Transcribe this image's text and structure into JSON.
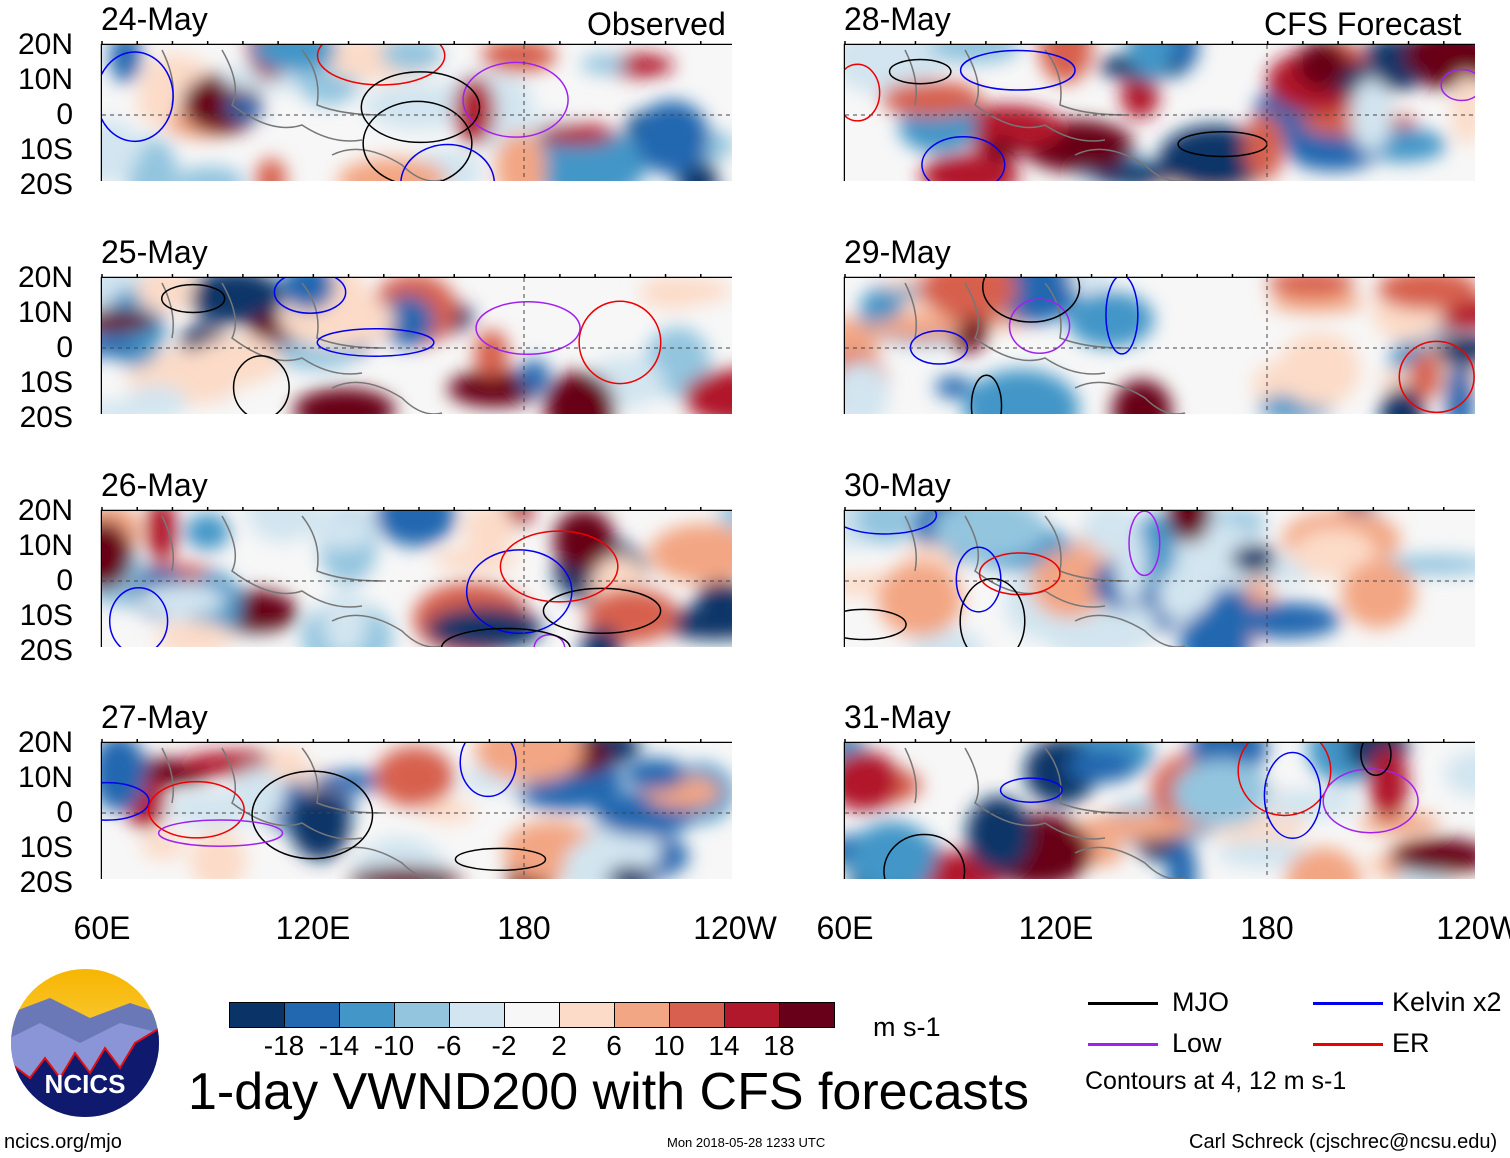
{
  "header": {
    "left_title": "Observed",
    "right_title": "CFS Forecast"
  },
  "panels": [
    {
      "date": "24-May",
      "column": "observed"
    },
    {
      "date": "25-May",
      "column": "observed"
    },
    {
      "date": "26-May",
      "column": "observed"
    },
    {
      "date": "27-May",
      "column": "observed"
    },
    {
      "date": "28-May",
      "column": "forecast"
    },
    {
      "date": "29-May",
      "column": "forecast"
    },
    {
      "date": "30-May",
      "column": "forecast"
    },
    {
      "date": "31-May",
      "column": "forecast"
    }
  ],
  "lat_labels": [
    "20N",
    "10N",
    "0",
    "10S",
    "20S"
  ],
  "lon_labels": [
    "60E",
    "120E",
    "180",
    "120W"
  ],
  "colorbar": {
    "colors": [
      "#0a3468",
      "#2268b0",
      "#4396c8",
      "#93c5df",
      "#d2e5f0",
      "#f7f7f7",
      "#fcdbc8",
      "#f3a683",
      "#d7604e",
      "#b1182b",
      "#680019"
    ],
    "labels": [
      "-18",
      "-14",
      "-10",
      "-6",
      "-2",
      "2",
      "6",
      "10",
      "14",
      "18"
    ],
    "units": "m s-1"
  },
  "title": "1-day VWND200 with CFS forecasts",
  "legend": {
    "items": [
      {
        "label": "MJO",
        "color": "#000000"
      },
      {
        "label": "Kelvin x2",
        "color": "#0000ee"
      },
      {
        "label": "Low",
        "color": "#a020f0"
      },
      {
        "label": "ER",
        "color": "#ee0000"
      }
    ],
    "note": "Contours at 4, 12 m s-1"
  },
  "logo": {
    "text": "NCICS"
  },
  "footer": {
    "url": "ncics.org/mjo",
    "timestamp": "Mon 2018-05-28 1233 UTC",
    "author": "Carl Schreck (cjschrec@ncsu.edu)"
  }
}
